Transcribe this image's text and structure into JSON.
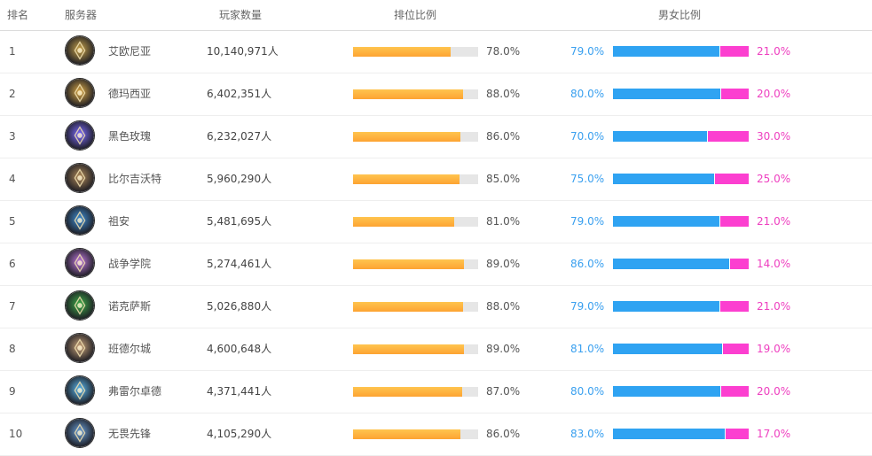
{
  "headers": {
    "rank": "排名",
    "server": "服务器",
    "players": "玩家数量",
    "rank_ratio": "排位比例",
    "gender_ratio": "男女比例"
  },
  "colors": {
    "rank_bar_fill": "#fdaa38",
    "rank_bar_track": "#e6e6e6",
    "male": "#2fa3f2",
    "female": "#fc3fd0"
  },
  "rows": [
    {
      "rank": "1",
      "server": "艾欧尼亚",
      "players": "10,140,971人",
      "rank_pct": "78.0%",
      "rank_ratio": 78,
      "male_pct": "79.0%",
      "male_ratio": 79,
      "female_pct": "21.0%",
      "icon": "ionia-emblem-icon",
      "tint": "#c8a24a"
    },
    {
      "rank": "2",
      "server": "德玛西亚",
      "players": "6,402,351人",
      "rank_pct": "88.0%",
      "rank_ratio": 88,
      "male_pct": "80.0%",
      "male_ratio": 80,
      "female_pct": "20.0%",
      "icon": "demacia-emblem-icon",
      "tint": "#d9a848"
    },
    {
      "rank": "3",
      "server": "黑色玫瑰",
      "players": "6,232,027人",
      "rank_pct": "86.0%",
      "rank_ratio": 86,
      "male_pct": "70.0%",
      "male_ratio": 70,
      "female_pct": "30.0%",
      "icon": "black-rose-emblem-icon",
      "tint": "#7d6cff"
    },
    {
      "rank": "4",
      "server": "比尔吉沃特",
      "players": "5,960,290人",
      "rank_pct": "85.0%",
      "rank_ratio": 85,
      "male_pct": "75.0%",
      "male_ratio": 75,
      "female_pct": "25.0%",
      "icon": "bilgewater-emblem-icon",
      "tint": "#b08a5a"
    },
    {
      "rank": "5",
      "server": "祖安",
      "players": "5,481,695人",
      "rank_pct": "81.0%",
      "rank_ratio": 81,
      "male_pct": "79.0%",
      "male_ratio": 79,
      "female_pct": "21.0%",
      "icon": "zaun-emblem-icon",
      "tint": "#3f8fd6"
    },
    {
      "rank": "6",
      "server": "战争学院",
      "players": "5,274,461人",
      "rank_pct": "89.0%",
      "rank_ratio": 89,
      "male_pct": "86.0%",
      "male_ratio": 86,
      "female_pct": "14.0%",
      "icon": "war-academy-emblem-icon",
      "tint": "#c07adf"
    },
    {
      "rank": "7",
      "server": "诺克萨斯",
      "players": "5,026,880人",
      "rank_pct": "88.0%",
      "rank_ratio": 88,
      "male_pct": "79.0%",
      "male_ratio": 79,
      "female_pct": "21.0%",
      "icon": "noxus-emblem-icon",
      "tint": "#3fae4a"
    },
    {
      "rank": "8",
      "server": "班德尔城",
      "players": "4,600,648人",
      "rank_pct": "89.0%",
      "rank_ratio": 89,
      "male_pct": "81.0%",
      "male_ratio": 81,
      "female_pct": "19.0%",
      "icon": "bandle-city-emblem-icon",
      "tint": "#c9a37a"
    },
    {
      "rank": "9",
      "server": "弗雷尔卓德",
      "players": "4,371,441人",
      "rank_pct": "87.0%",
      "rank_ratio": 87,
      "male_pct": "80.0%",
      "male_ratio": 80,
      "female_pct": "20.0%",
      "icon": "freljord-emblem-icon",
      "tint": "#59b8f0"
    },
    {
      "rank": "10",
      "server": "无畏先锋",
      "players": "4,105,290人",
      "rank_pct": "86.0%",
      "rank_ratio": 86,
      "male_pct": "83.0%",
      "male_ratio": 83,
      "female_pct": "17.0%",
      "icon": "vanguard-emblem-icon",
      "tint": "#6a9fd8"
    }
  ]
}
